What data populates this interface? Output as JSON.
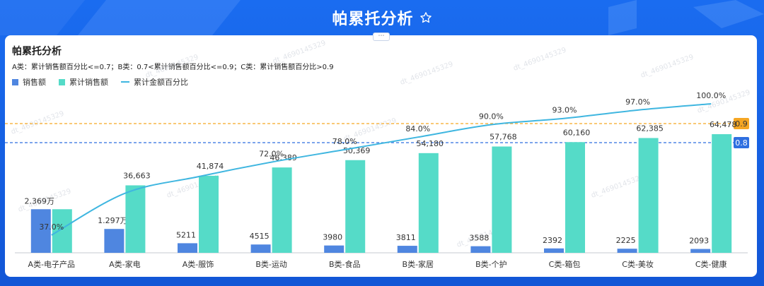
{
  "header": {
    "title": "帕累托分析"
  },
  "card": {
    "title": "帕累托分析",
    "subtitle": "A类：累计销售额百分比<=0.7；B类：0.7<累计销售额百分比<=0.9；C类：累计销售额百分比>0.9",
    "watermark": "dt_4690145329"
  },
  "colors": {
    "sales": "#4f86e0",
    "cumulative": "#55dbc8",
    "percent_line": "#3fb6e0",
    "ref_09": "#f5a623",
    "ref_08": "#2f6fe0"
  },
  "chart_data": {
    "type": "bar+line",
    "categories": [
      "A类-电子产品",
      "A类-家电",
      "A类-服饰",
      "B类-运动",
      "B类-食品",
      "B类-家居",
      "B类-个护",
      "C类-箱包",
      "C类-美妆",
      "C类-健康"
    ],
    "series": [
      {
        "name": "销售额",
        "values": [
          23690,
          12970,
          5211,
          4515,
          3980,
          3811,
          3588,
          2392,
          2225,
          2093
        ],
        "labels": [
          "2.369万",
          "1.297万",
          "5211",
          "4515",
          "3980",
          "3811",
          "3588",
          "2392",
          "2225",
          "2093"
        ]
      },
      {
        "name": "累计销售额",
        "values": [
          23690,
          36663,
          41874,
          46389,
          50369,
          54180,
          57768,
          60160,
          62385,
          64478
        ],
        "labels": [
          "",
          "36,663",
          "41,874",
          "46,389",
          "50,369",
          "54,180",
          "57,768",
          "60,160",
          "62,385",
          "64,478"
        ]
      },
      {
        "name": "累计金额百分比",
        "values": [
          0.37,
          0.57,
          0.65,
          0.72,
          0.78,
          0.84,
          0.9,
          0.93,
          0.97,
          1.0
        ],
        "labels": [
          "37.0%",
          "",
          "",
          "72.0%",
          "78.0%",
          "84.0%",
          "90.0%",
          "93.0%",
          "97.0%",
          "100.0%"
        ]
      }
    ],
    "reference_lines": [
      {
        "value": 0.9,
        "label": "0.9"
      },
      {
        "value": 0.8,
        "label": "0.8"
      }
    ],
    "ylim_bar": [
      0,
      64478
    ],
    "ylim_pct": [
      0,
      1.0
    ]
  }
}
